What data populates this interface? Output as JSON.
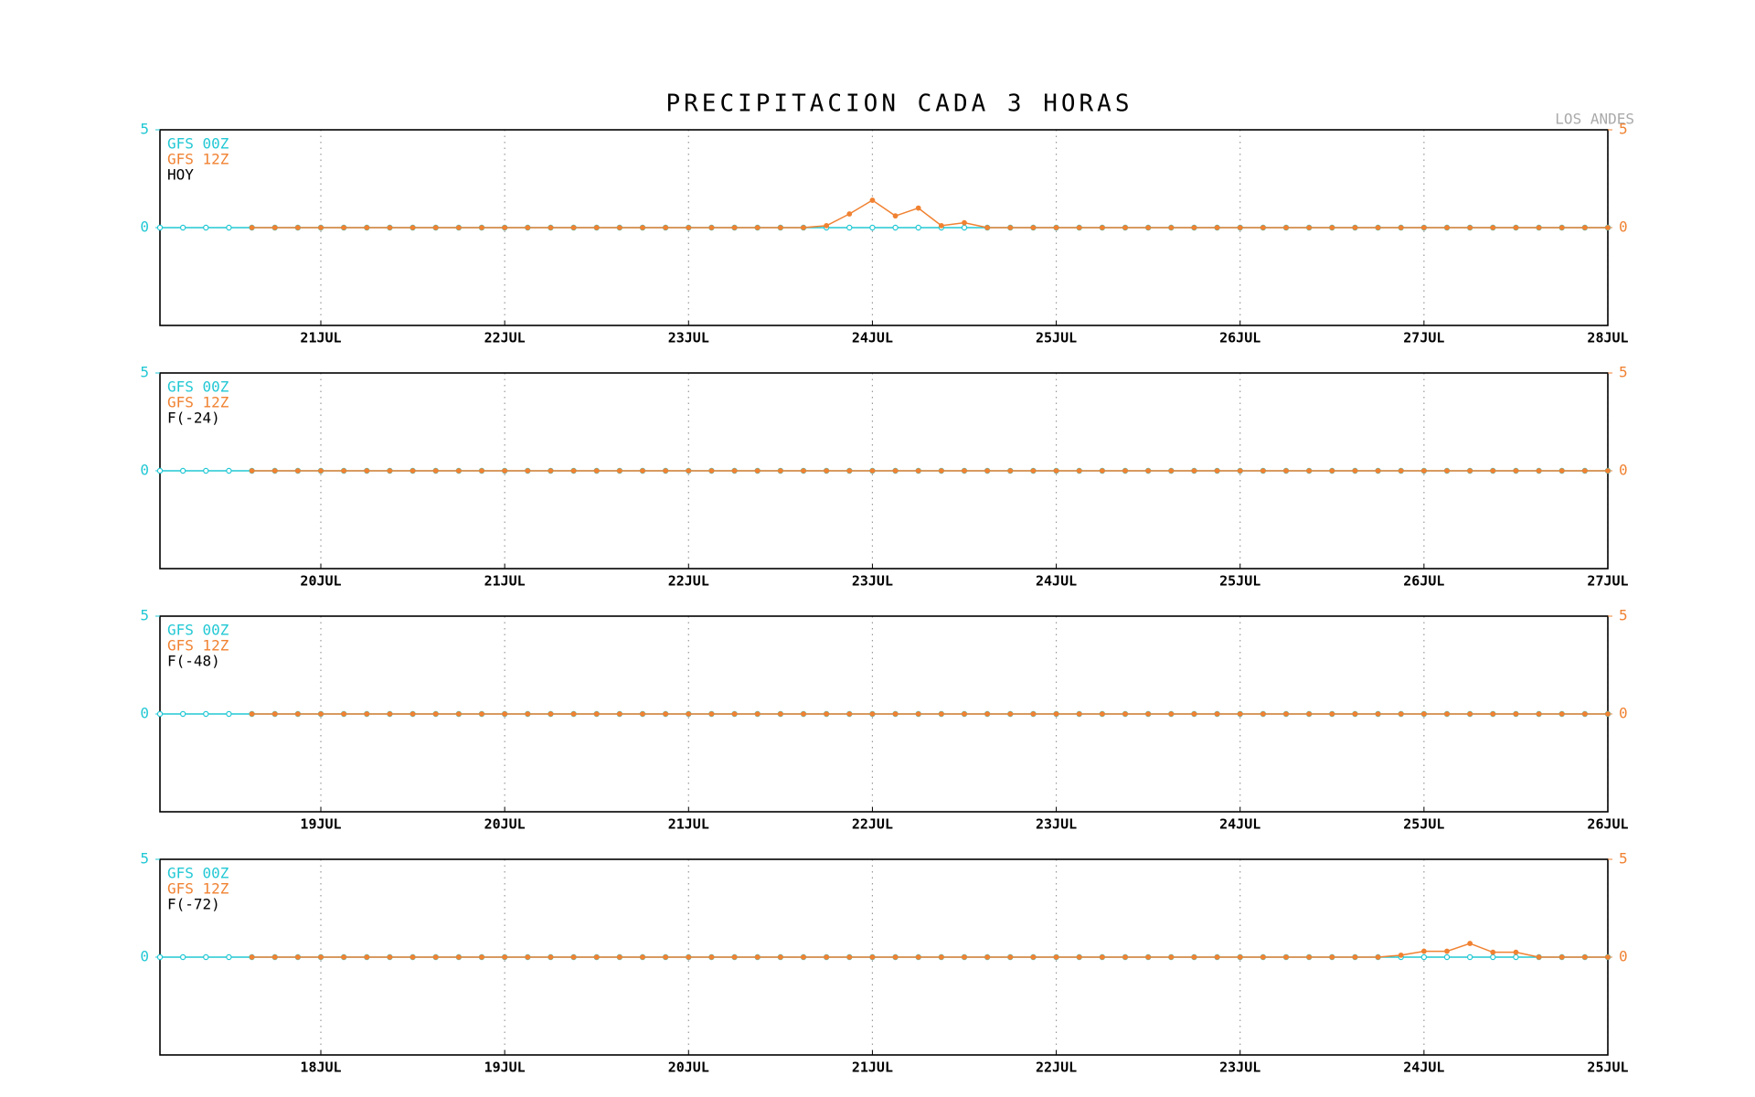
{
  "title": "PRECIPITACION CADA 3 HORAS",
  "location": "LOS ANDES",
  "chart_data": [
    {
      "type": "line",
      "subtitle": "HOY",
      "categories": [
        null,
        null,
        null,
        null,
        null,
        null,
        null,
        "21JUL",
        null,
        null,
        null,
        null,
        null,
        null,
        null,
        "22JUL",
        null,
        null,
        null,
        null,
        null,
        null,
        null,
        "23JUL",
        null,
        null,
        null,
        null,
        null,
        null,
        null,
        "24JUL",
        null,
        null,
        null,
        null,
        null,
        null,
        null,
        "25JUL",
        null,
        null,
        null,
        null,
        null,
        null,
        null,
        "26JUL",
        null,
        null,
        null,
        null,
        null,
        null,
        null,
        "27JUL",
        null,
        null,
        null,
        null,
        null,
        null,
        null,
        "28JUL"
      ],
      "series": [
        {
          "name": "GFS 00Z",
          "color": "#22c8d4",
          "values": [
            0,
            0,
            0,
            0,
            0,
            0,
            0,
            0,
            0,
            0,
            0,
            0,
            0,
            0,
            0,
            0,
            0,
            0,
            0,
            0,
            0,
            0,
            0,
            0,
            0,
            0,
            0,
            0,
            0,
            0,
            0,
            0,
            0,
            0,
            0,
            0,
            0,
            0,
            0,
            0,
            0,
            0,
            0,
            0,
            0,
            0,
            0,
            0,
            0,
            0,
            0,
            0,
            0,
            0,
            0,
            0,
            0,
            0,
            0,
            0,
            0,
            0,
            0,
            0
          ]
        },
        {
          "name": "GFS 12Z",
          "color": "#f08232",
          "axis": "y2",
          "values": [
            null,
            null,
            null,
            null,
            0,
            0,
            0,
            0,
            0,
            0,
            0,
            0,
            0,
            0,
            0,
            0,
            0,
            0,
            0,
            0,
            0,
            0,
            0,
            0,
            0,
            0,
            0,
            0,
            0,
            0.1,
            0.7,
            1.4,
            0.6,
            1.0,
            0.1,
            0.25,
            0,
            0,
            0,
            0,
            0,
            0,
            0,
            0,
            0,
            0,
            0,
            0,
            0,
            0,
            0,
            0,
            0,
            0,
            0,
            0,
            0,
            0,
            0,
            0,
            0,
            0,
            0,
            0
          ]
        }
      ],
      "ylim": [
        -5,
        5
      ],
      "yticks": [
        0,
        5
      ],
      "y2lim": [
        -5,
        5
      ],
      "y2ticks": [
        0,
        5
      ],
      "grid": true
    },
    {
      "type": "line",
      "subtitle": "F(-24)",
      "categories": [
        null,
        null,
        null,
        null,
        null,
        null,
        null,
        "20JUL",
        null,
        null,
        null,
        null,
        null,
        null,
        null,
        "21JUL",
        null,
        null,
        null,
        null,
        null,
        null,
        null,
        "22JUL",
        null,
        null,
        null,
        null,
        null,
        null,
        null,
        "23JUL",
        null,
        null,
        null,
        null,
        null,
        null,
        null,
        "24JUL",
        null,
        null,
        null,
        null,
        null,
        null,
        null,
        "25JUL",
        null,
        null,
        null,
        null,
        null,
        null,
        null,
        "26JUL",
        null,
        null,
        null,
        null,
        null,
        null,
        null,
        "27JUL"
      ],
      "series": [
        {
          "name": "GFS 00Z",
          "color": "#22c8d4",
          "values": [
            0,
            0,
            0,
            0,
            0,
            0,
            0,
            0,
            0,
            0,
            0,
            0,
            0,
            0,
            0,
            0,
            0,
            0,
            0,
            0,
            0,
            0,
            0,
            0,
            0,
            0,
            0,
            0,
            0,
            0,
            0,
            0,
            0,
            0,
            0,
            0,
            0,
            0,
            0,
            0,
            0,
            0,
            0,
            0,
            0,
            0,
            0,
            0,
            0,
            0,
            0,
            0,
            0,
            0,
            0,
            0,
            0,
            0,
            0,
            0,
            0,
            0,
            0,
            0
          ]
        },
        {
          "name": "GFS 12Z",
          "color": "#f08232",
          "axis": "y2",
          "values": [
            null,
            null,
            null,
            null,
            0,
            0,
            0,
            0,
            0,
            0,
            0,
            0,
            0,
            0,
            0,
            0,
            0,
            0,
            0,
            0,
            0,
            0,
            0,
            0,
            0,
            0,
            0,
            0,
            0,
            0,
            0,
            0,
            0,
            0,
            0,
            0,
            0,
            0,
            0,
            0,
            0,
            0,
            0,
            0,
            0,
            0,
            0,
            0,
            0,
            0,
            0,
            0,
            0,
            0,
            0,
            0,
            0,
            0,
            0,
            0,
            0,
            0,
            0,
            0
          ]
        }
      ],
      "ylim": [
        -5,
        5
      ],
      "yticks": [
        0,
        5
      ],
      "y2lim": [
        -5,
        5
      ],
      "y2ticks": [
        0,
        5
      ],
      "grid": true
    },
    {
      "type": "line",
      "subtitle": "F(-48)",
      "categories": [
        null,
        null,
        null,
        null,
        null,
        null,
        null,
        "19JUL",
        null,
        null,
        null,
        null,
        null,
        null,
        null,
        "20JUL",
        null,
        null,
        null,
        null,
        null,
        null,
        null,
        "21JUL",
        null,
        null,
        null,
        null,
        null,
        null,
        null,
        "22JUL",
        null,
        null,
        null,
        null,
        null,
        null,
        null,
        "23JUL",
        null,
        null,
        null,
        null,
        null,
        null,
        null,
        "24JUL",
        null,
        null,
        null,
        null,
        null,
        null,
        null,
        "25JUL",
        null,
        null,
        null,
        null,
        null,
        null,
        null,
        "26JUL"
      ],
      "series": [
        {
          "name": "GFS 00Z",
          "color": "#22c8d4",
          "values": [
            0,
            0,
            0,
            0,
            0,
            0,
            0,
            0,
            0,
            0,
            0,
            0,
            0,
            0,
            0,
            0,
            0,
            0,
            0,
            0,
            0,
            0,
            0,
            0,
            0,
            0,
            0,
            0,
            0,
            0,
            0,
            0,
            0,
            0,
            0,
            0,
            0,
            0,
            0,
            0,
            0,
            0,
            0,
            0,
            0,
            0,
            0,
            0,
            0,
            0,
            0,
            0,
            0,
            0,
            0,
            0,
            0,
            0,
            0,
            0,
            0,
            0,
            0,
            0
          ]
        },
        {
          "name": "GFS 12Z",
          "color": "#f08232",
          "axis": "y2",
          "values": [
            null,
            null,
            null,
            null,
            0,
            0,
            0,
            0,
            0,
            0,
            0,
            0,
            0,
            0,
            0,
            0,
            0,
            0,
            0,
            0,
            0,
            0,
            0,
            0,
            0,
            0,
            0,
            0,
            0,
            0,
            0,
            0,
            0,
            0,
            0,
            0,
            0,
            0,
            0,
            0,
            0,
            0,
            0,
            0,
            0,
            0,
            0,
            0,
            0,
            0,
            0,
            0,
            0,
            0,
            0,
            0,
            0,
            0,
            0,
            0,
            0,
            0,
            0,
            0
          ]
        }
      ],
      "ylim": [
        -5,
        5
      ],
      "yticks": [
        0,
        5
      ],
      "y2lim": [
        -5,
        5
      ],
      "y2ticks": [
        0,
        5
      ],
      "grid": true
    },
    {
      "type": "line",
      "subtitle": "F(-72)",
      "categories": [
        null,
        null,
        null,
        null,
        null,
        null,
        null,
        "18JUL",
        null,
        null,
        null,
        null,
        null,
        null,
        null,
        "19JUL",
        null,
        null,
        null,
        null,
        null,
        null,
        null,
        "20JUL",
        null,
        null,
        null,
        null,
        null,
        null,
        null,
        "21JUL",
        null,
        null,
        null,
        null,
        null,
        null,
        null,
        "22JUL",
        null,
        null,
        null,
        null,
        null,
        null,
        null,
        "23JUL",
        null,
        null,
        null,
        null,
        null,
        null,
        null,
        "24JUL",
        null,
        null,
        null,
        null,
        null,
        null,
        null,
        "25JUL"
      ],
      "series": [
        {
          "name": "GFS 00Z",
          "color": "#22c8d4",
          "values": [
            0,
            0,
            0,
            0,
            0,
            0,
            0,
            0,
            0,
            0,
            0,
            0,
            0,
            0,
            0,
            0,
            0,
            0,
            0,
            0,
            0,
            0,
            0,
            0,
            0,
            0,
            0,
            0,
            0,
            0,
            0,
            0,
            0,
            0,
            0,
            0,
            0,
            0,
            0,
            0,
            0,
            0,
            0,
            0,
            0,
            0,
            0,
            0,
            0,
            0,
            0,
            0,
            0,
            0,
            0,
            0,
            0,
            0,
            0,
            0,
            0,
            0,
            0,
            0
          ]
        },
        {
          "name": "GFS 12Z",
          "color": "#f08232",
          "axis": "y2",
          "values": [
            null,
            null,
            null,
            null,
            0,
            0,
            0,
            0,
            0,
            0,
            0,
            0,
            0,
            0,
            0,
            0,
            0,
            0,
            0,
            0,
            0,
            0,
            0,
            0,
            0,
            0,
            0,
            0,
            0,
            0,
            0,
            0,
            0,
            0,
            0,
            0,
            0,
            0,
            0,
            0,
            0,
            0,
            0,
            0,
            0,
            0,
            0,
            0,
            0,
            0,
            0,
            0,
            0,
            0,
            0.1,
            0.3,
            0.3,
            0.7,
            0.25,
            0.25,
            0,
            0,
            0,
            0
          ]
        }
      ],
      "ylim": [
        -5,
        5
      ],
      "yticks": [
        0,
        5
      ],
      "y2lim": [
        -5,
        5
      ],
      "y2ticks": [
        0,
        5
      ],
      "grid": true
    }
  ]
}
